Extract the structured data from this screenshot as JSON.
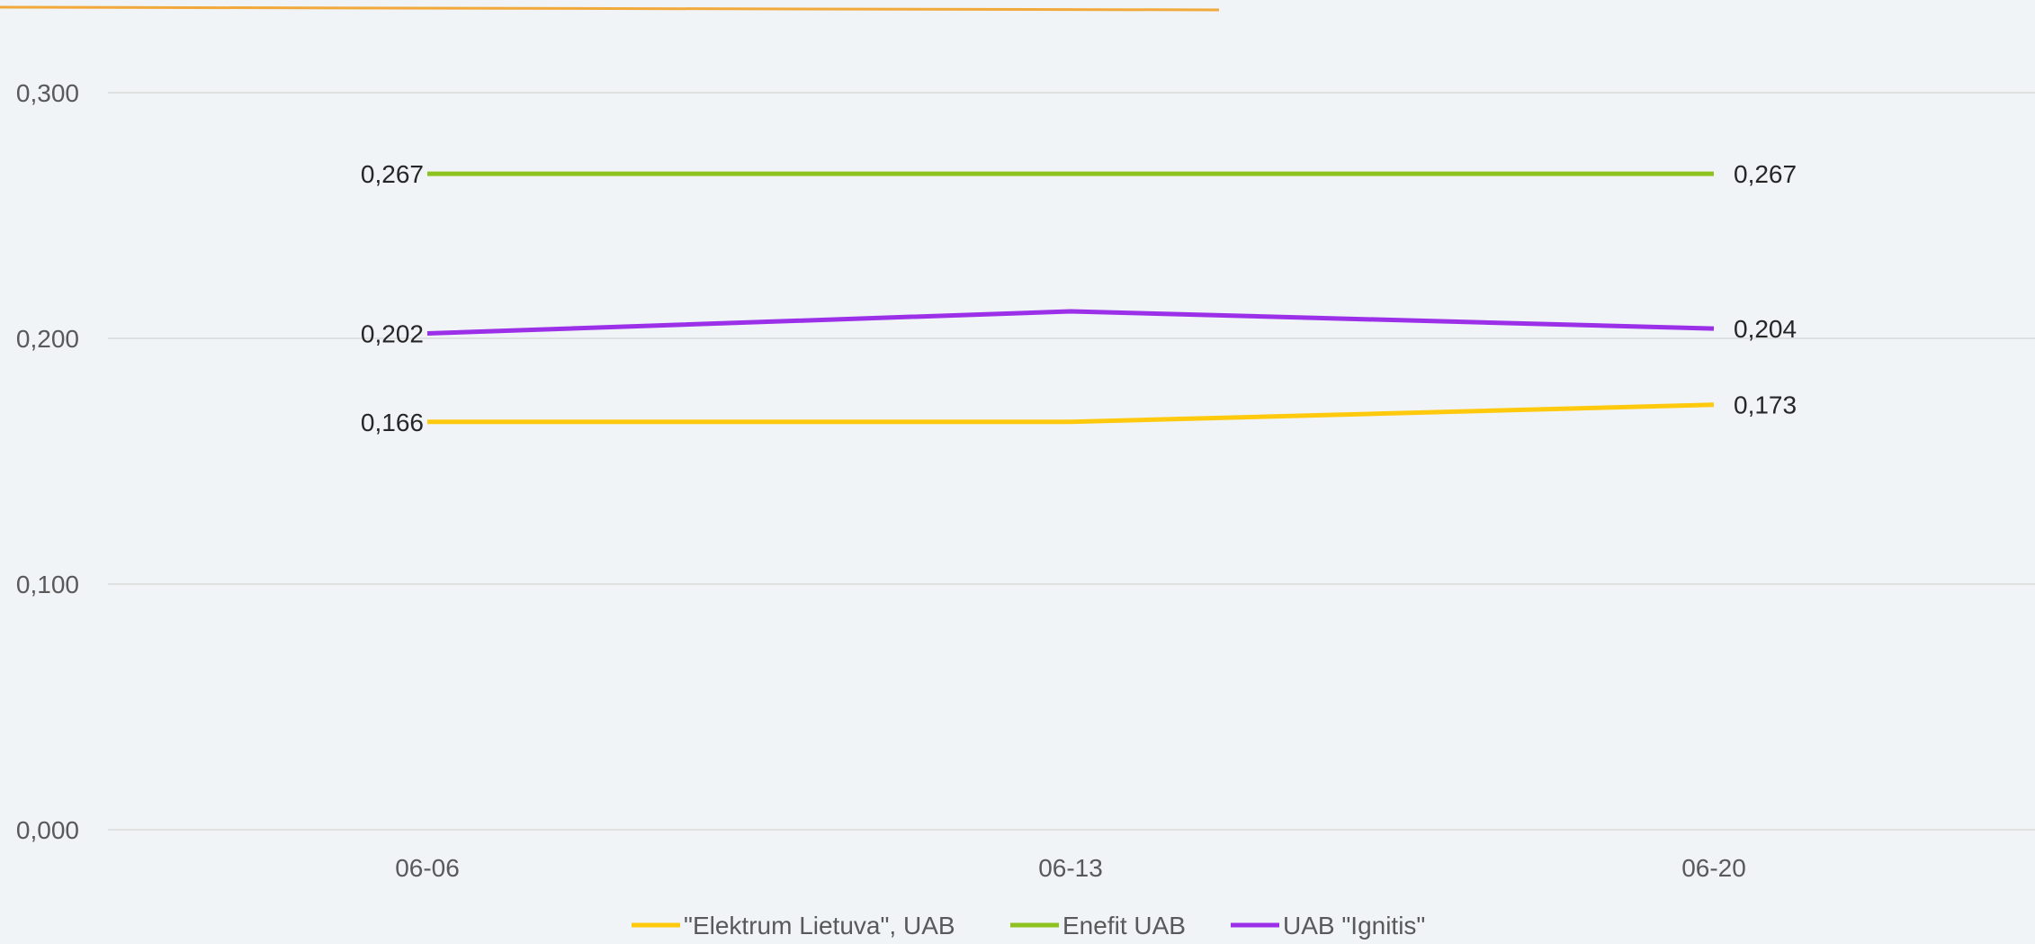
{
  "chart_data": {
    "type": "line",
    "categories": [
      "06-06",
      "06-13",
      "06-20"
    ],
    "ylim": [
      0,
      0.3
    ],
    "yticks": [
      "0,000",
      "0,100",
      "0,200",
      "0,300"
    ],
    "ytick_values": [
      0,
      0.1,
      0.2,
      0.3
    ],
    "grid": true,
    "legend_position": "bottom",
    "series": [
      {
        "name": "\"Elektrum Lietuva\", UAB",
        "color": "#ffc90e",
        "values": [
          0.166,
          0.166,
          0.173
        ],
        "labels": [
          "0,166",
          "",
          "0,173"
        ]
      },
      {
        "name": "Enefit UAB",
        "color": "#8dc21f",
        "values": [
          0.267,
          0.267,
          0.267
        ],
        "labels": [
          "0,267",
          "",
          "0,267"
        ]
      },
      {
        "name": "UAB \"Ignitis\"",
        "color": "#9b30e8",
        "values": [
          0.202,
          0.211,
          0.204
        ],
        "labels": [
          "0,202",
          "",
          "0,204"
        ]
      }
    ],
    "top_bar_color": "#f2a93b"
  }
}
